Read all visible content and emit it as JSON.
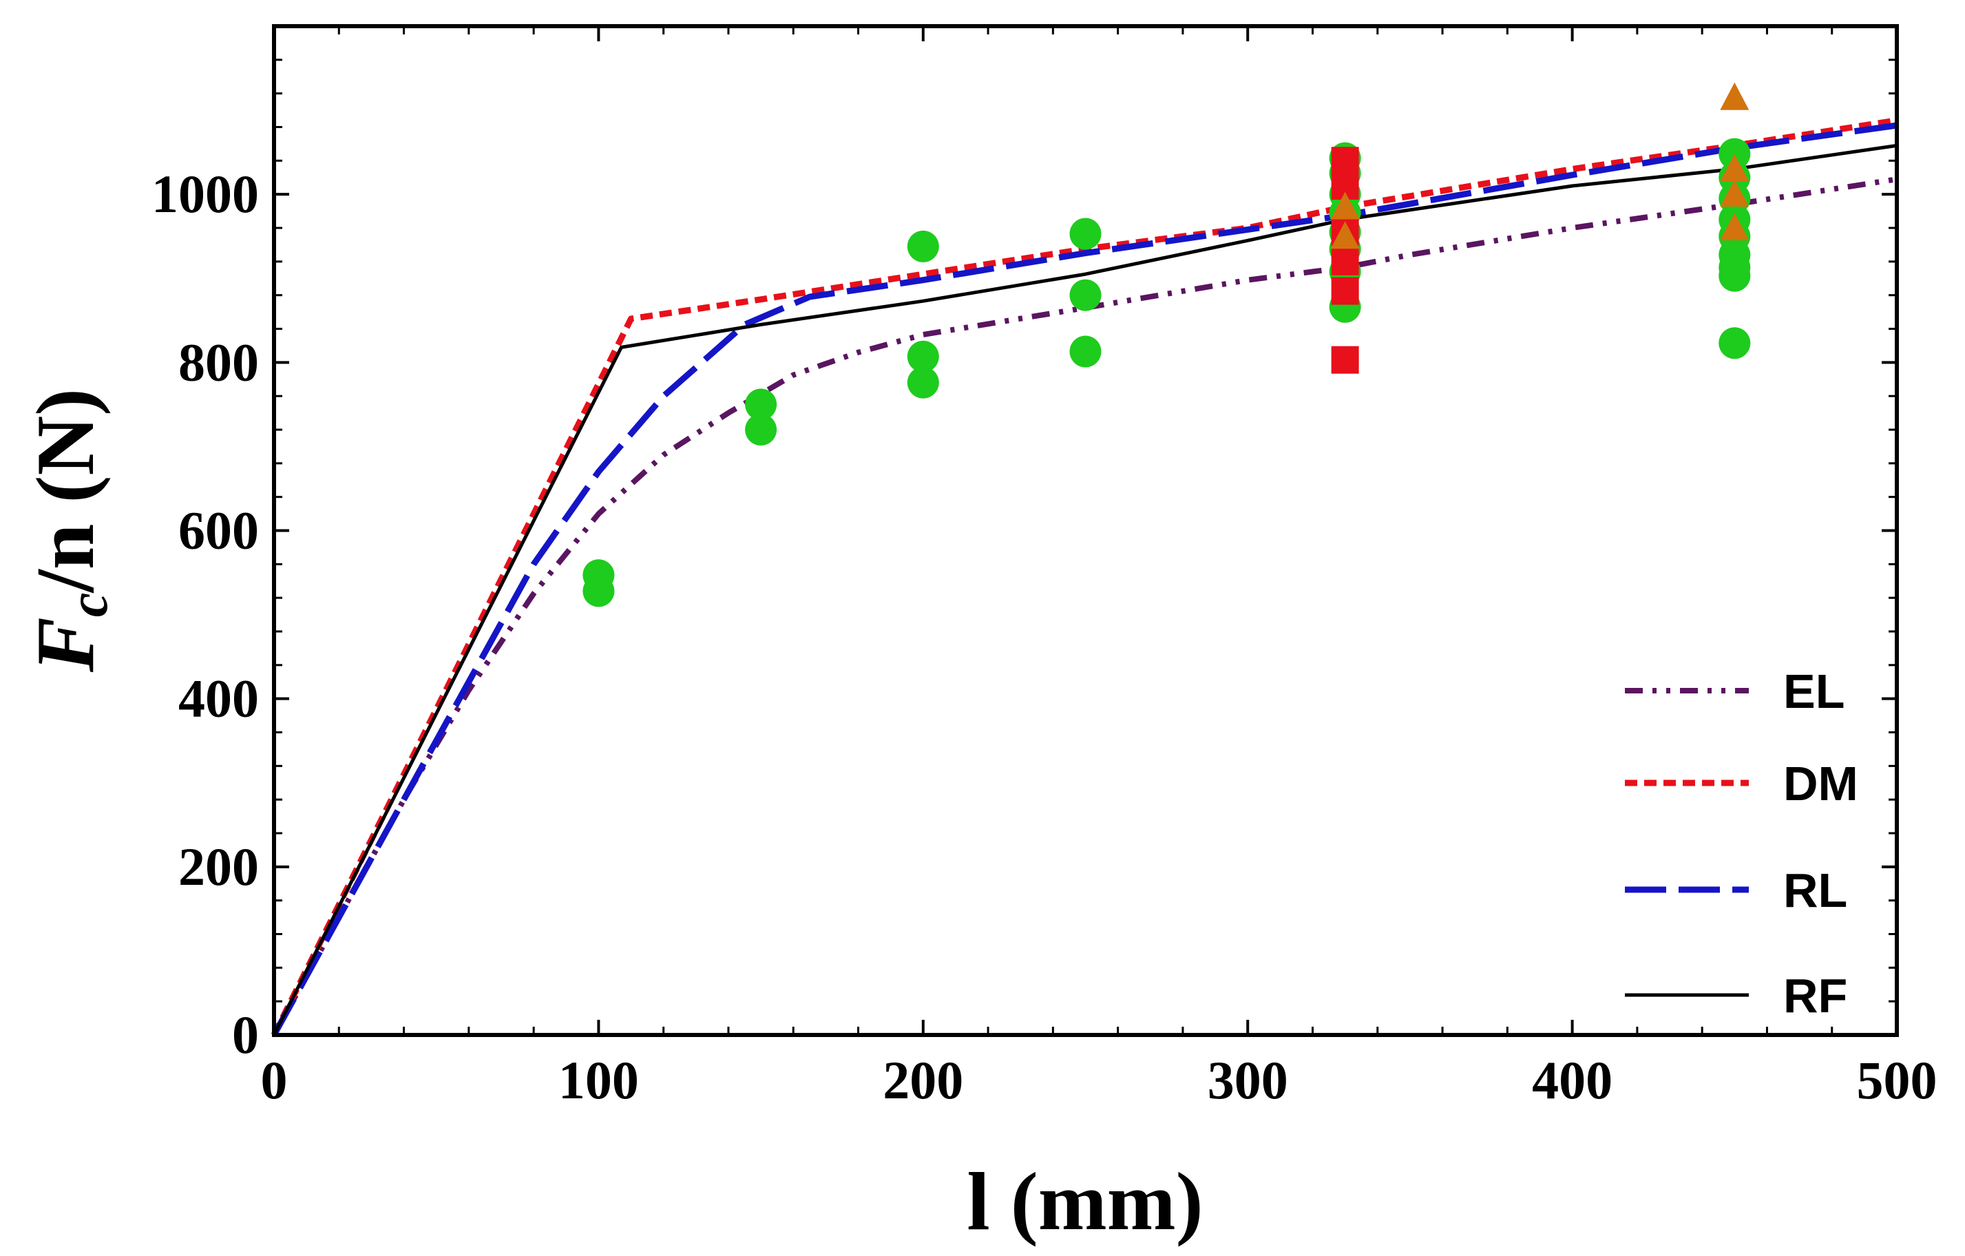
{
  "chart_data": {
    "type": "scatter",
    "xlabel": "l (mm)",
    "ylabel_main": "F",
    "ylabel_sub": "c",
    "ylabel_rest": "/n (N)",
    "xlim": [
      0,
      500
    ],
    "ylim": [
      0,
      1200
    ],
    "xticks": [
      0,
      100,
      200,
      300,
      400,
      500
    ],
    "yticks": [
      0,
      200,
      400,
      600,
      800,
      1000
    ],
    "xminor_step": 20,
    "yminor_step": 40,
    "legend_position": "bottom-right",
    "series_lines": [
      {
        "name": "EL",
        "style": "dash-dot-dot",
        "color": "#5a1560",
        "points": [
          [
            0,
            0
          ],
          [
            20,
            140
          ],
          [
            40,
            280
          ],
          [
            60,
            410
          ],
          [
            80,
            525
          ],
          [
            100,
            620
          ],
          [
            120,
            690
          ],
          [
            140,
            740
          ],
          [
            160,
            785
          ],
          [
            180,
            812
          ],
          [
            200,
            833
          ],
          [
            250,
            865
          ],
          [
            300,
            898
          ],
          [
            330,
            913
          ],
          [
            350,
            928
          ],
          [
            400,
            960
          ],
          [
            450,
            988
          ],
          [
            500,
            1018
          ]
        ]
      },
      {
        "name": "DM",
        "style": "short-dash",
        "color": "#e8101a",
        "points": [
          [
            0,
            0
          ],
          [
            110,
            852
          ],
          [
            150,
            875
          ],
          [
            200,
            905
          ],
          [
            250,
            935
          ],
          [
            300,
            960
          ],
          [
            330,
            985
          ],
          [
            400,
            1030
          ],
          [
            450,
            1058
          ],
          [
            500,
            1088
          ]
        ]
      },
      {
        "name": "RL",
        "style": "long-dash",
        "color": "#1515c8",
        "points": [
          [
            0,
            0
          ],
          [
            30,
            210
          ],
          [
            60,
            420
          ],
          [
            80,
            560
          ],
          [
            100,
            670
          ],
          [
            120,
            760
          ],
          [
            145,
            845
          ],
          [
            165,
            878
          ],
          [
            200,
            898
          ],
          [
            250,
            930
          ],
          [
            300,
            958
          ],
          [
            330,
            975
          ],
          [
            400,
            1023
          ],
          [
            450,
            1055
          ],
          [
            500,
            1082
          ]
        ]
      },
      {
        "name": "RF",
        "style": "solid",
        "color": "#000000",
        "points": [
          [
            0,
            0
          ],
          [
            107,
            818
          ],
          [
            150,
            845
          ],
          [
            200,
            873
          ],
          [
            250,
            905
          ],
          [
            300,
            945
          ],
          [
            330,
            970
          ],
          [
            400,
            1010
          ],
          [
            450,
            1030
          ],
          [
            500,
            1058
          ]
        ]
      }
    ],
    "scatter_series": [
      {
        "name": "green circles",
        "marker": "circle",
        "color": "#1dcc1d",
        "points": [
          [
            100,
            528
          ],
          [
            100,
            547
          ],
          [
            150,
            720
          ],
          [
            150,
            750
          ],
          [
            200,
            776
          ],
          [
            200,
            807
          ],
          [
            200,
            938
          ],
          [
            250,
            813
          ],
          [
            250,
            880
          ],
          [
            250,
            953
          ],
          [
            330,
            866
          ],
          [
            330,
            908
          ],
          [
            330,
            935
          ],
          [
            330,
            955
          ],
          [
            330,
            978
          ],
          [
            330,
            1000
          ],
          [
            330,
            1025
          ],
          [
            330,
            1043
          ],
          [
            450,
            823
          ],
          [
            450,
            903
          ],
          [
            450,
            913
          ],
          [
            450,
            928
          ],
          [
            450,
            950
          ],
          [
            450,
            970
          ],
          [
            450,
            995
          ],
          [
            450,
            1020
          ],
          [
            450,
            1048
          ]
        ]
      },
      {
        "name": "red squares",
        "marker": "square",
        "color": "#e8101a",
        "points": [
          [
            330,
            803
          ],
          [
            330,
            885
          ],
          [
            330,
            920
          ],
          [
            330,
            955
          ],
          [
            330,
            1010
          ],
          [
            330,
            1040
          ]
        ]
      },
      {
        "name": "orange triangles",
        "marker": "triangle",
        "color": "#d2730e",
        "points": [
          [
            330,
            950
          ],
          [
            330,
            985
          ],
          [
            450,
            960
          ],
          [
            450,
            1000
          ],
          [
            450,
            1030
          ],
          [
            450,
            1115
          ]
        ]
      }
    ]
  }
}
